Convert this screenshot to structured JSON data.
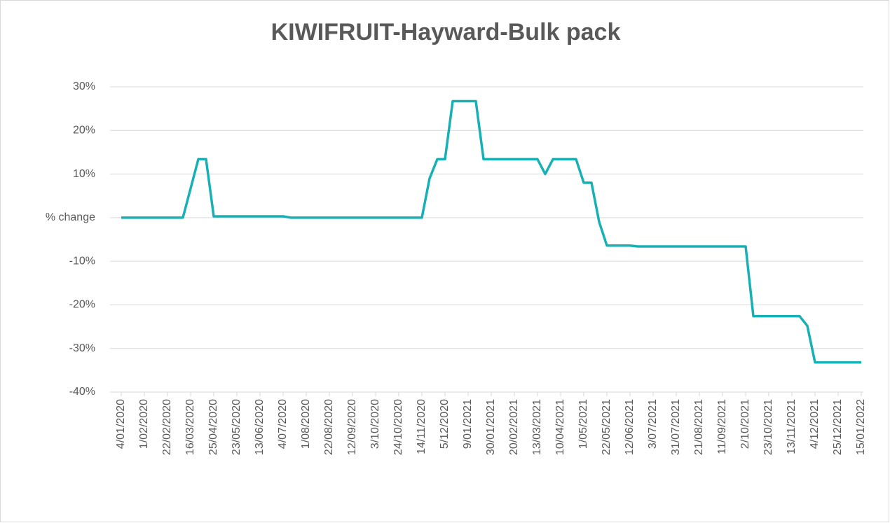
{
  "chart_data": {
    "type": "line",
    "title": "KIWIFRUIT-Hayward-Bulk pack",
    "categories": [
      "4/01/2020",
      null,
      null,
      "1/02/2020",
      null,
      null,
      "22/02/2020",
      null,
      null,
      "16/03/2020",
      null,
      null,
      "25/04/2020",
      null,
      null,
      "23/05/2020",
      null,
      null,
      "13/06/2020",
      null,
      null,
      "4/07/2020",
      null,
      null,
      "1/08/2020",
      null,
      null,
      "22/08/2020",
      null,
      null,
      "12/09/2020",
      null,
      null,
      "3/10/2020",
      null,
      null,
      "24/10/2020",
      null,
      null,
      "14/11/2020",
      null,
      null,
      "5/12/2020",
      null,
      null,
      "9/01/2021",
      null,
      null,
      "30/01/2021",
      null,
      null,
      "20/02/2021",
      null,
      null,
      "13/03/2021",
      null,
      null,
      "10/04/2021",
      null,
      null,
      "1/05/2021",
      null,
      null,
      "22/05/2021",
      null,
      null,
      "12/06/2021",
      null,
      null,
      "3/07/2021",
      null,
      null,
      "31/07/2021",
      null,
      null,
      "21/08/2021",
      null,
      null,
      "11/09/2021",
      null,
      null,
      "2/10/2021",
      null,
      null,
      "23/10/2021",
      null,
      null,
      "13/11/2021",
      null,
      null,
      "4/12/2021",
      null,
      null,
      "25/12/2021",
      null,
      null,
      "15/01/2022"
    ],
    "values": [
      0,
      0,
      0,
      0,
      0,
      0,
      0,
      0,
      0,
      6.7,
      13.4,
      13.4,
      0.3,
      0.3,
      0.3,
      0.3,
      0.3,
      0.3,
      0.3,
      0.3,
      0.3,
      0.3,
      0,
      0,
      0,
      0,
      0,
      0,
      0,
      0,
      0,
      0,
      0,
      0,
      0,
      0,
      0,
      0,
      0,
      0,
      9,
      13.4,
      13.4,
      26.7,
      26.7,
      26.7,
      26.7,
      13.4,
      13.4,
      13.4,
      13.4,
      13.4,
      13.4,
      13.4,
      13.4,
      10,
      13.4,
      13.4,
      13.4,
      13.4,
      8,
      8,
      -1,
      -6.4,
      -6.4,
      -6.4,
      -6.4,
      -6.6,
      -6.6,
      -6.6,
      -6.6,
      -6.6,
      -6.6,
      -6.6,
      -6.6,
      -6.6,
      -6.6,
      -6.6,
      -6.6,
      -6.6,
      -6.6,
      -6.6,
      -22.6,
      -22.6,
      -22.6,
      -22.6,
      -22.6,
      -22.6,
      -22.6,
      -24.8,
      -33.2,
      -33.2,
      -33.2,
      -33.2,
      -33.2,
      -33.2,
      -33.2
    ],
    "color": "#17b0b5",
    "ylim": [
      -40,
      30
    ],
    "yticks": [
      {
        "value": -40,
        "label": "-40%"
      },
      {
        "value": -30,
        "label": "-30%"
      },
      {
        "value": -20,
        "label": "-20%"
      },
      {
        "value": -10,
        "label": "-10%"
      },
      {
        "value": 0,
        "label": "% change"
      },
      {
        "value": 10,
        "label": "10%"
      },
      {
        "value": 20,
        "label": "20%"
      },
      {
        "value": 30,
        "label": "30%"
      }
    ],
    "grid": true
  }
}
